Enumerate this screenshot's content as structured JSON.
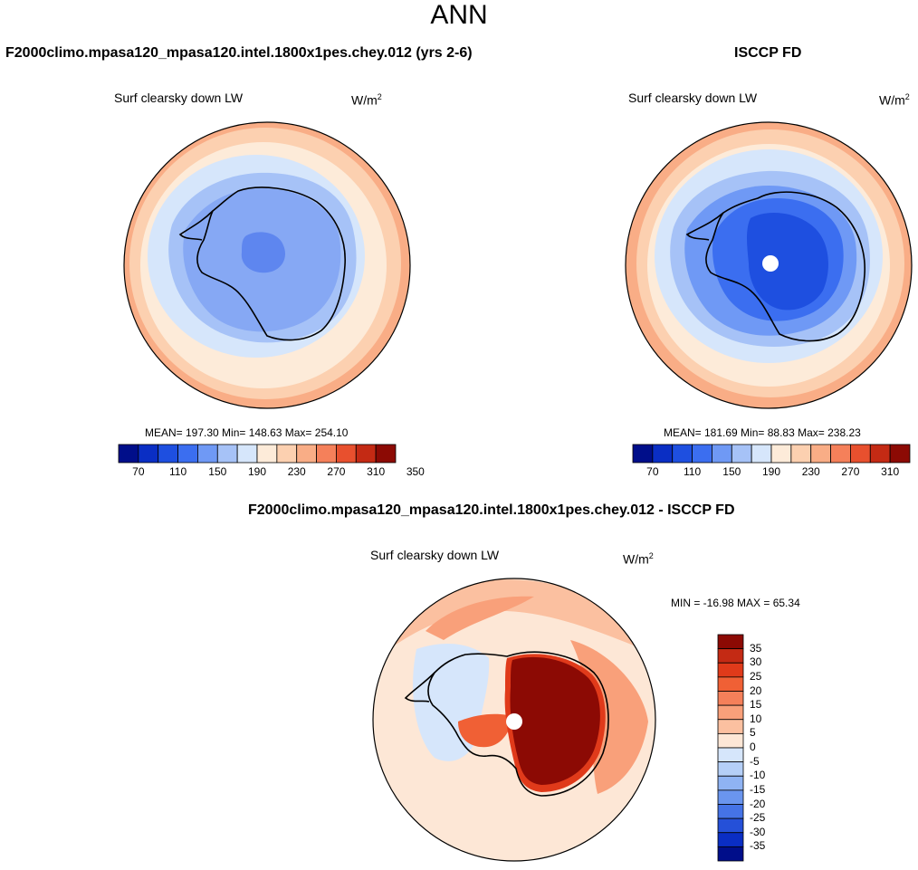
{
  "header": {
    "title": "ANN"
  },
  "panels": {
    "model": {
      "title": "F2000climo.mpasa120_mpasa120.intel.1800x1pes.chey.012 (yrs 2-6)",
      "variable": "Surf clearsky down LW",
      "units": "W/m",
      "units_sup": "2",
      "stats": "MEAN= 197.30  Min= 148.63  Max= 254.10"
    },
    "obs": {
      "title": "ISCCP FD",
      "variable": "Surf clearsky down LW",
      "units": "W/m",
      "units_sup": "2",
      "stats": "MEAN= 181.69  Min=  88.83  Max= 238.23"
    },
    "diff": {
      "title": "F2000climo.mpasa120_mpasa120.intel.1800x1pes.chey.012 - ISCCP FD",
      "variable": "Surf clearsky down LW",
      "units": "W/m",
      "units_sup": "2",
      "stats": "MIN = -16.98 MAX =  65.34"
    }
  },
  "colorbars": {
    "abs_ticks": [
      "70",
      "110",
      "150",
      "190",
      "230",
      "270",
      "310",
      "350"
    ],
    "abs_colors": [
      "#000e8a",
      "#0a2ec4",
      "#1e4fe0",
      "#3b6ef0",
      "#6f99f5",
      "#a6c2f7",
      "#d6e6fb",
      "#fdebd9",
      "#fcd0b0",
      "#f9ad86",
      "#f5805a",
      "#e8502e",
      "#c42a14",
      "#8c0a04"
    ],
    "diff_ticks": [
      "35",
      "30",
      "25",
      "20",
      "15",
      "10",
      "5",
      "0",
      "-5",
      "-10",
      "-15",
      "-20",
      "-25",
      "-30",
      "-35"
    ],
    "diff_colors": [
      "#8c0a04",
      "#c42a14",
      "#e03a1a",
      "#f06035",
      "#f5805a",
      "#f9a07a",
      "#fbc0a0",
      "#fde7d6",
      "#d6e6fb",
      "#b5cff7",
      "#8fb3f3",
      "#6a95ee",
      "#4573e6",
      "#2550d8",
      "#0a2ec4",
      "#000e8a"
    ]
  },
  "chart_data": [
    {
      "type": "heatmap",
      "title": "F2000climo.mpasa120_mpasa120.intel.1800x1pes.chey.012 (yrs 2-6)",
      "variable": "Surf clearsky down LW",
      "units": "W/m2",
      "projection": "south polar stereographic",
      "mean": 197.3,
      "min": 148.63,
      "max": 254.1,
      "contour_levels": [
        70,
        90,
        110,
        130,
        150,
        170,
        190,
        210,
        230,
        250,
        270,
        290,
        310,
        330,
        350
      ]
    },
    {
      "type": "heatmap",
      "title": "ISCCP FD",
      "variable": "Surf clearsky down LW",
      "units": "W/m2",
      "projection": "south polar stereographic",
      "mean": 181.69,
      "min": 88.83,
      "max": 238.23,
      "contour_levels": [
        70,
        90,
        110,
        130,
        150,
        170,
        190,
        210,
        230,
        250,
        270,
        290,
        310,
        330,
        350
      ]
    },
    {
      "type": "heatmap",
      "title": "F2000climo.mpasa120_mpasa120.intel.1800x1pes.chey.012 - ISCCP FD",
      "variable": "Surf clearsky down LW",
      "units": "W/m2",
      "projection": "south polar stereographic",
      "min": -16.98,
      "max": 65.34,
      "contour_levels": [
        -35,
        -30,
        -25,
        -20,
        -15,
        -10,
        -5,
        0,
        5,
        10,
        15,
        20,
        25,
        30,
        35
      ]
    }
  ]
}
